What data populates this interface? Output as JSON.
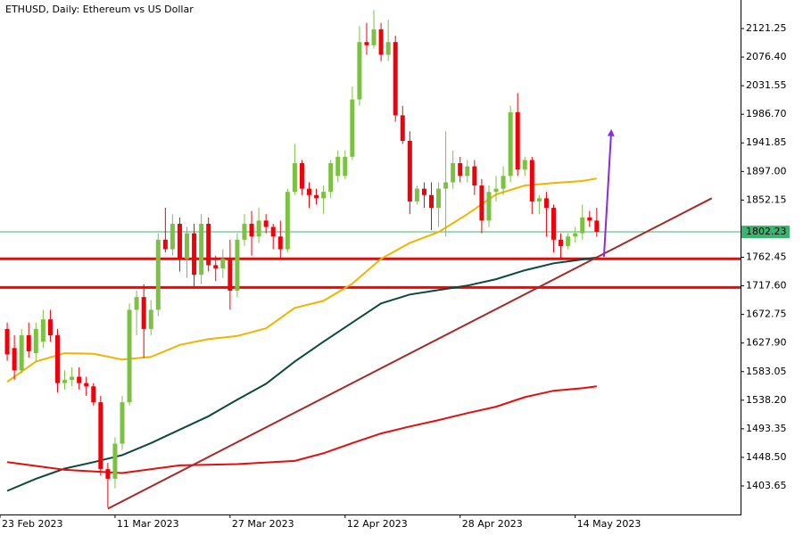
{
  "chart_data": {
    "type": "candlestick",
    "title": "ETHUSD, Daily:  Ethereum vs US Dollar",
    "x": [
      "2023-02-24",
      "2023-02-25",
      "2023-02-26",
      "2023-02-27",
      "2023-02-28",
      "2023-03-01",
      "2023-03-02",
      "2023-03-03",
      "2023-03-04",
      "2023-03-05",
      "2023-03-06",
      "2023-03-07",
      "2023-03-08",
      "2023-03-09",
      "2023-03-10",
      "2023-03-11",
      "2023-03-12",
      "2023-03-13",
      "2023-03-14",
      "2023-03-15",
      "2023-03-16",
      "2023-03-17",
      "2023-03-18",
      "2023-03-19",
      "2023-03-20",
      "2023-03-21",
      "2023-03-22",
      "2023-03-23",
      "2023-03-24",
      "2023-03-25",
      "2023-03-26",
      "2023-03-27",
      "2023-03-28",
      "2023-03-29",
      "2023-03-30",
      "2023-03-31",
      "2023-04-01",
      "2023-04-02",
      "2023-04-03",
      "2023-04-04",
      "2023-04-05",
      "2023-04-06",
      "2023-04-07",
      "2023-04-08",
      "2023-04-09",
      "2023-04-10",
      "2023-04-11",
      "2023-04-12",
      "2023-04-13",
      "2023-04-14",
      "2023-04-15",
      "2023-04-16",
      "2023-04-17",
      "2023-04-18",
      "2023-04-19",
      "2023-04-20",
      "2023-04-21",
      "2023-04-22",
      "2023-04-23",
      "2023-04-24",
      "2023-04-25",
      "2023-04-26",
      "2023-04-27",
      "2023-04-28",
      "2023-04-29",
      "2023-04-30",
      "2023-05-01",
      "2023-05-02",
      "2023-05-03",
      "2023-05-04",
      "2023-05-05",
      "2023-05-06",
      "2023-05-07",
      "2023-05-08",
      "2023-05-09",
      "2023-05-10",
      "2023-05-11",
      "2023-05-12",
      "2023-05-13",
      "2023-05-14",
      "2023-05-15",
      "2023-05-16",
      "2023-05-17"
    ],
    "open": [
      1650,
      1620,
      1585,
      1640,
      1612,
      1630,
      1665,
      1640,
      1565,
      1570,
      1575,
      1565,
      1560,
      1535,
      1430,
      1415,
      1470,
      1535,
      1680,
      1700,
      1650,
      1680,
      1790,
      1775,
      1815,
      1760,
      1800,
      1735,
      1815,
      1750,
      1745,
      1760,
      1710,
      1790,
      1815,
      1795,
      1820,
      1810,
      1795,
      1775,
      1865,
      1910,
      1870,
      1860,
      1855,
      1865,
      1890,
      1890,
      1920,
      2010,
      2100,
      2095,
      2120,
      2080,
      2100,
      1985,
      1945,
      1850,
      1870,
      1860,
      1840,
      1870,
      1880,
      1910,
      1890,
      1905,
      1875,
      1820,
      1865,
      1870,
      1890,
      1990,
      1900,
      1915,
      1850,
      1855,
      1840,
      1790,
      1780,
      1795,
      1800,
      1825,
      1820
    ],
    "high": [
      1660,
      1640,
      1650,
      1660,
      1660,
      1680,
      1680,
      1650,
      1585,
      1590,
      1590,
      1575,
      1565,
      1545,
      1440,
      1480,
      1545,
      1690,
      1710,
      1720,
      1695,
      1800,
      1840,
      1830,
      1825,
      1810,
      1815,
      1830,
      1825,
      1765,
      1775,
      1790,
      1800,
      1830,
      1835,
      1840,
      1830,
      1815,
      1820,
      1870,
      1940,
      1915,
      1880,
      1870,
      1875,
      1915,
      1930,
      1930,
      2030,
      2125,
      2130,
      2150,
      2130,
      2135,
      2110,
      2000,
      1960,
      1875,
      1880,
      1880,
      1880,
      1960,
      1930,
      1920,
      1915,
      1915,
      1885,
      1875,
      1890,
      1905,
      2000,
      2020,
      1920,
      1920,
      1860,
      1865,
      1845,
      1800,
      1800,
      1810,
      1845,
      1835,
      1840
    ],
    "low": [
      1600,
      1570,
      1580,
      1605,
      1600,
      1620,
      1630,
      1550,
      1555,
      1560,
      1555,
      1545,
      1530,
      1420,
      1370,
      1400,
      1460,
      1530,
      1640,
      1605,
      1640,
      1670,
      1770,
      1765,
      1740,
      1730,
      1715,
      1720,
      1740,
      1725,
      1730,
      1680,
      1700,
      1780,
      1765,
      1785,
      1800,
      1775,
      1760,
      1770,
      1860,
      1860,
      1840,
      1845,
      1830,
      1855,
      1880,
      1885,
      1915,
      2000,
      2080,
      2090,
      2070,
      2070,
      1975,
      1940,
      1830,
      1845,
      1840,
      1805,
      1810,
      1795,
      1870,
      1880,
      1880,
      1860,
      1800,
      1810,
      1850,
      1860,
      1880,
      1890,
      1890,
      1830,
      1830,
      1795,
      1770,
      1760,
      1775,
      1785,
      1790,
      1810,
      1795
    ],
    "close": [
      1610,
      1585,
      1640,
      1615,
      1650,
      1665,
      1640,
      1565,
      1570,
      1575,
      1565,
      1560,
      1535,
      1430,
      1415,
      1470,
      1535,
      1680,
      1700,
      1650,
      1680,
      1790,
      1775,
      1815,
      1760,
      1800,
      1735,
      1815,
      1750,
      1745,
      1760,
      1710,
      1790,
      1815,
      1795,
      1820,
      1810,
      1795,
      1775,
      1865,
      1910,
      1870,
      1860,
      1855,
      1865,
      1910,
      1920,
      1920,
      2010,
      2100,
      2095,
      2120,
      2080,
      2100,
      1985,
      1945,
      1850,
      1870,
      1860,
      1840,
      1870,
      1880,
      1910,
      1890,
      1905,
      1875,
      1820,
      1865,
      1870,
      1890,
      1990,
      1900,
      1915,
      1850,
      1855,
      1840,
      1790,
      1780,
      1795,
      1800,
      1825,
      1820,
      1802.23
    ],
    "up_color": "#7cc242",
    "down_color": "#f0000a",
    "xlim": [
      "2023-02-23",
      "2023-06-06"
    ],
    "xticks": [
      {
        "value": "2023-02-23",
        "label": "23 Feb 2023"
      },
      {
        "value": "2023-03-11",
        "label": "11 Mar 2023"
      },
      {
        "value": "2023-03-27",
        "label": "27 Mar 2023"
      },
      {
        "value": "2023-04-12",
        "label": "12 Apr 2023"
      },
      {
        "value": "2023-04-28",
        "label": "28 Apr 2023"
      },
      {
        "value": "2023-05-14",
        "label": "14 May 2023"
      }
    ],
    "ylim": [
      1358.9,
      2166.0
    ],
    "yticks": [
      2121.25,
      {
        "value": 2076.4,
        "label": "2076.40"
      },
      2031.55,
      {
        "value": 1986.7,
        "label": "1986.70"
      },
      1941.85,
      {
        "value": 1897,
        "label": "1897.00"
      },
      1852.15,
      1762.45,
      {
        "value": 1717.6,
        "label": "1717.60"
      },
      1672.75,
      {
        "value": 1627.9,
        "label": "1627.90"
      },
      1583.05,
      {
        "value": 1538.2,
        "label": "1538.20"
      },
      1493.35,
      {
        "value": 1448.5,
        "label": "1448.50"
      },
      1403.65
    ],
    "moving_averages": [
      {
        "color": "#f0b400",
        "x": [
          "2023-02-24",
          "2023-02-28",
          "2023-03-04",
          "2023-03-08",
          "2023-03-12",
          "2023-03-16",
          "2023-03-20",
          "2023-03-24",
          "2023-03-28",
          "2023-04-01",
          "2023-04-05",
          "2023-04-09",
          "2023-04-13",
          "2023-04-17",
          "2023-04-21",
          "2023-04-25",
          "2023-04-29",
          "2023-05-03",
          "2023-05-07",
          "2023-05-11",
          "2023-05-15",
          "2023-05-17"
        ],
        "values": [
          1567,
          1599,
          1612,
          1611,
          1602,
          1606,
          1625,
          1634,
          1639,
          1651,
          1683,
          1694,
          1721,
          1760,
          1785,
          1802,
          1830,
          1861,
          1875,
          1879,
          1882,
          1886
        ]
      },
      {
        "color": "#0b4a3c",
        "x": [
          "2023-02-24",
          "2023-02-28",
          "2023-03-04",
          "2023-03-08",
          "2023-03-12",
          "2023-03-16",
          "2023-03-20",
          "2023-03-24",
          "2023-03-28",
          "2023-04-01",
          "2023-04-05",
          "2023-04-09",
          "2023-04-13",
          "2023-04-17",
          "2023-04-21",
          "2023-04-25",
          "2023-04-29",
          "2023-05-03",
          "2023-05-07",
          "2023-05-11",
          "2023-05-15",
          "2023-05-17"
        ],
        "values": [
          1396,
          1415,
          1431,
          1441,
          1452,
          1471,
          1492,
          1513,
          1539,
          1564,
          1599,
          1630,
          1660,
          1690,
          1704,
          1711,
          1718,
          1728,
          1742,
          1753,
          1759,
          1762
        ]
      },
      {
        "color": "#e01010",
        "x": [
          "2023-02-24",
          "2023-03-04",
          "2023-03-12",
          "2023-03-20",
          "2023-03-28",
          "2023-04-05",
          "2023-04-09",
          "2023-04-13",
          "2023-04-17",
          "2023-04-21",
          "2023-04-25",
          "2023-04-29",
          "2023-05-03",
          "2023-05-07",
          "2023-05-11",
          "2023-05-15",
          "2023-05-17"
        ],
        "values": [
          1441,
          1429,
          1424,
          1436,
          1438,
          1443,
          1455,
          1471,
          1486,
          1497,
          1507,
          1518,
          1528,
          1543,
          1553,
          1557,
          1560
        ]
      }
    ],
    "trendline": {
      "color": "#a52a2a",
      "x": [
        "2023-03-10",
        "2023-06-02"
      ],
      "values": [
        1368,
        1855
      ]
    },
    "horizontal_lines": [
      {
        "value": 1760,
        "color": "#ff0000"
      },
      {
        "value": 1715,
        "color": "#ff0000"
      }
    ],
    "last_price": {
      "value": 1802.23,
      "color": "#3cb371"
    },
    "arrow": {
      "color": "#8a2be2",
      "x": [
        "2023-05-18",
        "2023-05-19"
      ],
      "values": [
        1763,
        1958
      ]
    }
  }
}
